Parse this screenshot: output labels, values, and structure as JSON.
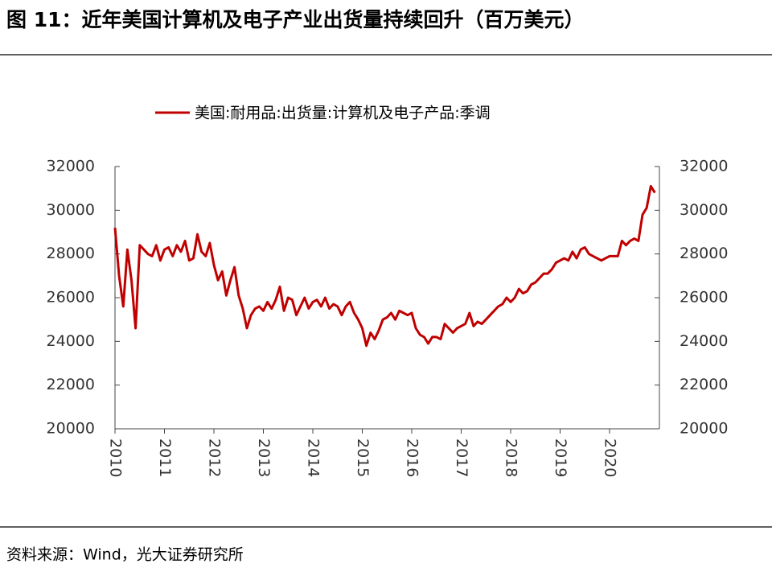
{
  "chart_data": {
    "type": "line",
    "title": "图 11：近年美国计算机及电子产业出货量持续回升（百万美元）",
    "source": "资料来源：Wind，光大证券研究所",
    "categories": [
      "2010",
      null,
      null,
      null,
      null,
      null,
      null,
      null,
      null,
      null,
      null,
      null,
      "2011",
      null,
      null,
      null,
      null,
      null,
      null,
      null,
      null,
      null,
      null,
      null,
      "2012",
      null,
      null,
      null,
      null,
      null,
      null,
      null,
      null,
      null,
      null,
      null,
      "2013",
      null,
      null,
      null,
      null,
      null,
      null,
      null,
      null,
      null,
      null,
      null,
      "2014",
      null,
      null,
      null,
      null,
      null,
      null,
      null,
      null,
      null,
      null,
      null,
      "2015",
      null,
      null,
      null,
      null,
      null,
      null,
      null,
      null,
      null,
      null,
      null,
      "2016",
      null,
      null,
      null,
      null,
      null,
      null,
      null,
      null,
      null,
      null,
      null,
      "2017",
      null,
      null,
      null,
      null,
      null,
      null,
      null,
      null,
      null,
      null,
      null,
      "2018",
      null,
      null,
      null,
      null,
      null,
      null,
      null,
      null,
      null,
      null,
      null,
      "2019",
      null,
      null,
      null,
      null,
      null,
      null,
      null,
      null,
      null,
      null,
      null,
      "2020",
      null,
      null,
      null,
      null,
      null,
      null,
      null,
      null,
      null,
      null,
      null
    ],
    "series": [
      {
        "name": "美国:耐用品:出货量:计算机及电子产品:季调",
        "color": "#c00000",
        "values": [
          29200,
          27000,
          25600,
          28200,
          26800,
          24600,
          28400,
          28200,
          28000,
          27900,
          28400,
          27700,
          28200,
          28300,
          27900,
          28400,
          28100,
          28600,
          27700,
          27800,
          28900,
          28100,
          27900,
          28500,
          27500,
          26800,
          27200,
          26100,
          26800,
          27400,
          26100,
          25500,
          24600,
          25200,
          25500,
          25600,
          25400,
          25800,
          25500,
          25900,
          26500,
          25400,
          26000,
          25900,
          25200,
          25600,
          26000,
          25500,
          25800,
          25900,
          25600,
          26000,
          25500,
          25700,
          25600,
          25200,
          25600,
          25800,
          25300,
          25000,
          24600,
          23800,
          24400,
          24100,
          24500,
          25000,
          25100,
          25300,
          25000,
          25400,
          25300,
          25200,
          25300,
          24600,
          24300,
          24200,
          23900,
          24200,
          24200,
          24100,
          24800,
          24600,
          24400,
          24600,
          24700,
          24800,
          25300,
          24700,
          24900,
          24800,
          25000,
          25200,
          25400,
          25600,
          25700,
          26000,
          25800,
          26000,
          26400,
          26200,
          26300,
          26600,
          26700,
          26900,
          27100,
          27100,
          27300,
          27600,
          27700,
          27800,
          27700,
          28100,
          27800,
          28200,
          28300,
          28000,
          27900,
          27800,
          27700,
          27800,
          27900,
          27900,
          27900,
          28600,
          28400,
          28600,
          28700,
          28600,
          29800,
          30100,
          31100,
          30800
        ]
      }
    ],
    "ylim": [
      20000,
      32000
    ],
    "yticks": [
      20000,
      22000,
      24000,
      26000,
      28000,
      30000,
      32000
    ],
    "y2lim": [
      20000,
      32000
    ],
    "y2ticks": [
      20000,
      22000,
      24000,
      26000,
      28000,
      30000,
      32000
    ],
    "legend": "top"
  }
}
